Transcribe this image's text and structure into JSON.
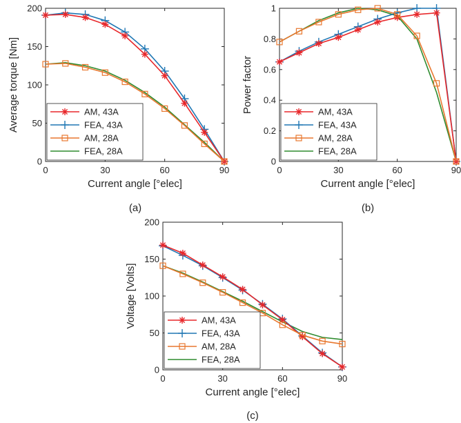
{
  "chart_data": [
    {
      "type": "line",
      "caption": "(a)",
      "xlabel": "Current angle [°elec]",
      "ylabel": "Average torque [Nm]",
      "xlim": [
        0,
        90
      ],
      "ylim": [
        0,
        200
      ],
      "xticks": [
        0,
        30,
        60,
        90
      ],
      "yticks": [
        0,
        50,
        100,
        150,
        200
      ],
      "legend_position": "bottom-left",
      "x": [
        0,
        10,
        20,
        30,
        40,
        50,
        60,
        70,
        80,
        90
      ],
      "series": [
        {
          "name": "AM, 43A",
          "color": "#e8272a",
          "marker": "asterisk",
          "values": [
            191,
            192,
            188,
            179,
            164,
            140,
            112,
            76,
            38,
            0
          ]
        },
        {
          "name": "FEA, 43A",
          "color": "#1f77b4",
          "marker": "plus",
          "values": [
            191,
            194,
            192,
            184,
            169,
            147,
            118,
            82,
            42,
            0
          ]
        },
        {
          "name": "AM, 28A",
          "color": "#e8772e",
          "marker": "square",
          "values": [
            127,
            128,
            123,
            116,
            104,
            88,
            69,
            47,
            23,
            0
          ]
        },
        {
          "name": "FEA, 28A",
          "color": "#2f8b2f",
          "marker": "none",
          "values": [
            127,
            129,
            125,
            118,
            106,
            90,
            71,
            48,
            25,
            0
          ]
        }
      ]
    },
    {
      "type": "line",
      "caption": "(b)",
      "xlabel": "Current angle [°elec]",
      "ylabel": "Power factor",
      "xlim": [
        0,
        90
      ],
      "ylim": [
        0,
        1
      ],
      "xticks": [
        0,
        30,
        60,
        90
      ],
      "yticks": [
        0,
        0.2,
        0.4,
        0.6,
        0.8,
        1
      ],
      "ytick_labels": [
        "0",
        "0.2",
        "0.4",
        "0.6",
        "0.8",
        "1"
      ],
      "legend_position": "bottom-left",
      "x": [
        0,
        10,
        20,
        30,
        40,
        50,
        60,
        70,
        80,
        90
      ],
      "series": [
        {
          "name": "AM, 43A",
          "color": "#e8272a",
          "marker": "asterisk",
          "values": [
            0.65,
            0.71,
            0.77,
            0.81,
            0.86,
            0.91,
            0.94,
            0.96,
            0.97,
            0.0
          ]
        },
        {
          "name": "FEA, 43A",
          "color": "#1f77b4",
          "marker": "plus",
          "values": [
            0.65,
            0.72,
            0.78,
            0.83,
            0.88,
            0.93,
            0.97,
            1.0,
            1.0,
            0.0
          ]
        },
        {
          "name": "AM, 28A",
          "color": "#e8772e",
          "marker": "square",
          "values": [
            0.78,
            0.85,
            0.91,
            0.96,
            0.99,
            1.0,
            0.96,
            0.82,
            0.51,
            0.0
          ]
        },
        {
          "name": "FEA, 28A",
          "color": "#2f8b2f",
          "marker": "none",
          "values": [
            0.78,
            0.85,
            0.92,
            0.97,
            1.0,
            0.99,
            0.95,
            0.8,
            0.45,
            0.0
          ]
        }
      ]
    },
    {
      "type": "line",
      "caption": "(c)",
      "xlabel": "Current angle [°elec]",
      "ylabel": "Voltage [Volts]",
      "xlim": [
        0,
        90
      ],
      "ylim": [
        0,
        200
      ],
      "xticks": [
        0,
        30,
        60,
        90
      ],
      "yticks": [
        0,
        50,
        100,
        150,
        200
      ],
      "legend_position": "bottom-left",
      "x": [
        0,
        10,
        20,
        30,
        40,
        50,
        60,
        70,
        80,
        90
      ],
      "series": [
        {
          "name": "AM, 43A",
          "color": "#e8272a",
          "marker": "asterisk",
          "values": [
            169,
            158,
            142,
            126,
            109,
            88,
            68,
            45,
            22,
            4
          ]
        },
        {
          "name": "FEA, 43A",
          "color": "#1f77b4",
          "marker": "plus",
          "values": [
            168,
            155,
            141,
            125,
            108,
            89,
            69,
            46,
            23,
            4
          ]
        },
        {
          "name": "AM, 28A",
          "color": "#e8772e",
          "marker": "square",
          "values": [
            141,
            130,
            118,
            105,
            91,
            77,
            61,
            47,
            39,
            35
          ]
        },
        {
          "name": "FEA, 28A",
          "color": "#2f8b2f",
          "marker": "none",
          "values": [
            141,
            131,
            119,
            106,
            93,
            79,
            65,
            52,
            44,
            41
          ]
        }
      ]
    }
  ]
}
